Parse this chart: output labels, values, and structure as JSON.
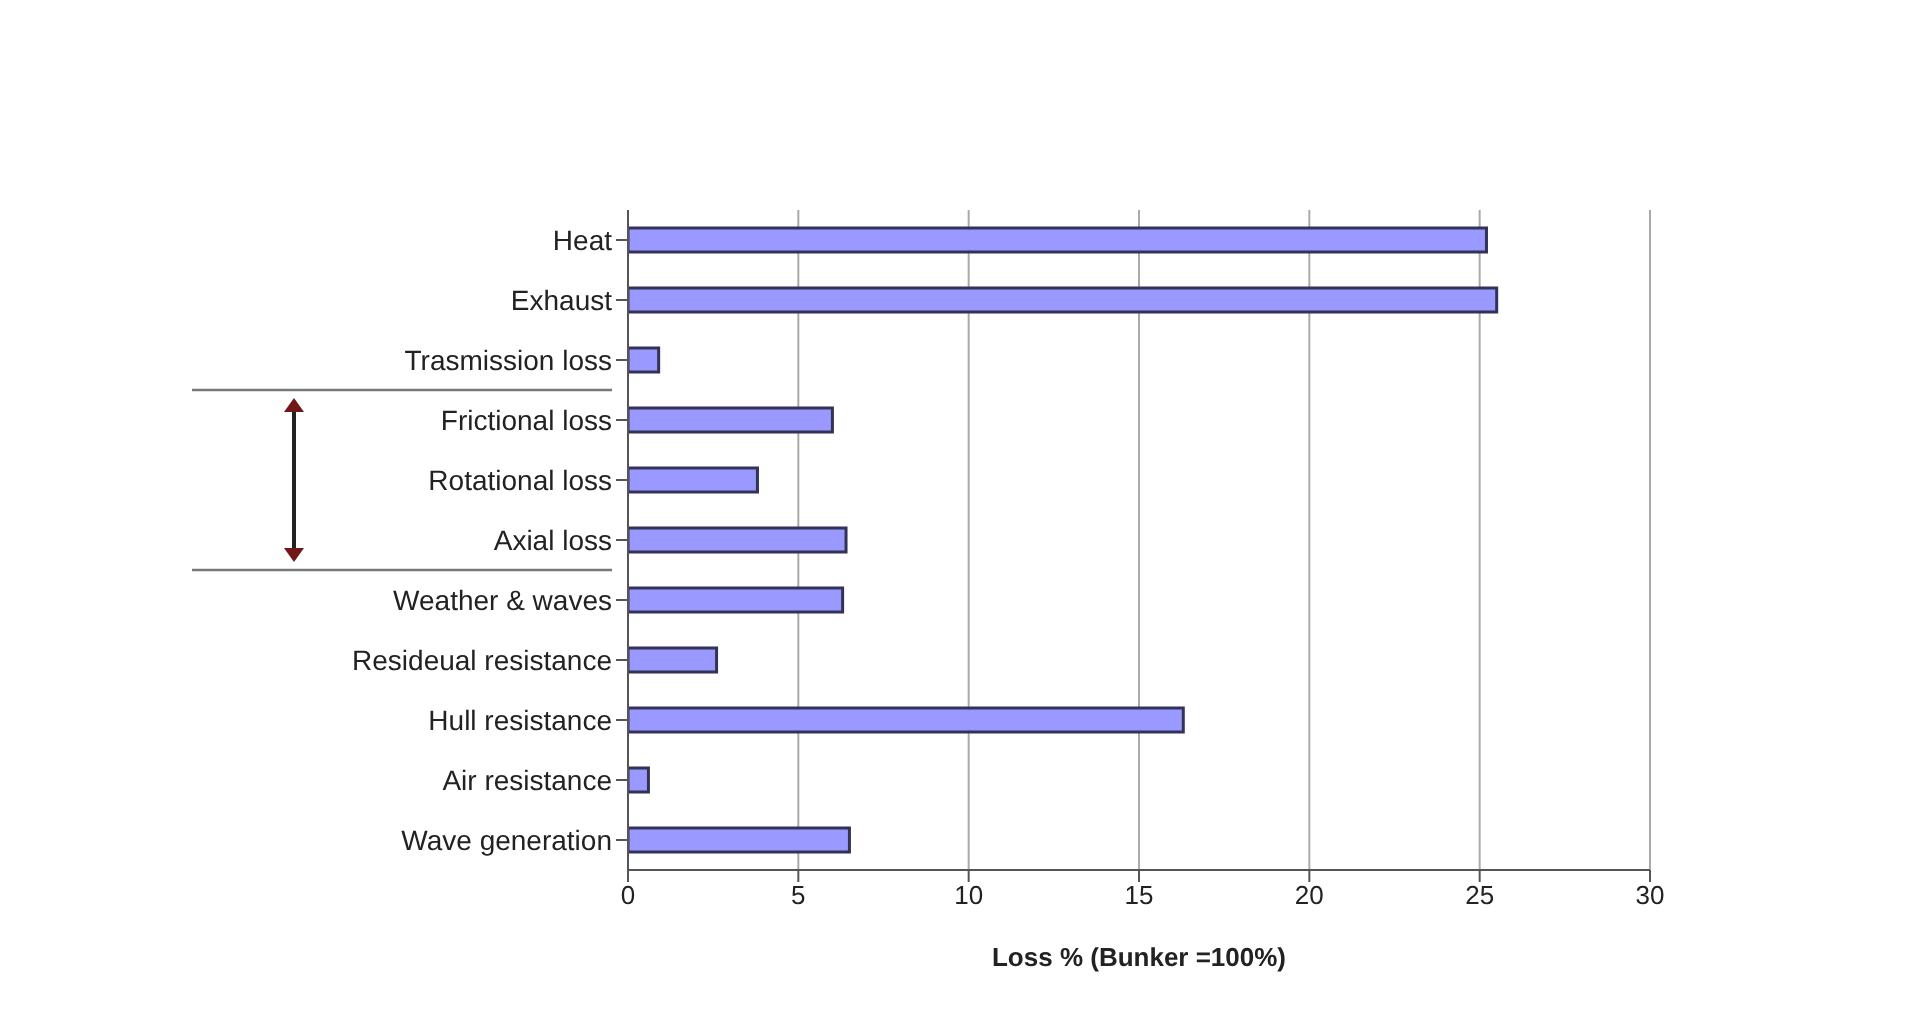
{
  "chart_data": {
    "type": "bar",
    "orientation": "horizontal",
    "xlabel": "Loss %  (Bunker =100%)",
    "categories": [
      "Heat",
      "Exhaust",
      "Trasmission loss",
      "Frictional loss",
      "Rotational loss",
      "Axial loss",
      "Weather & waves",
      "Resideual resistance",
      "Hull resistance",
      "Air resistance",
      "Wave generation"
    ],
    "values": [
      25.2,
      25.5,
      0.9,
      6.0,
      3.8,
      6.4,
      6.3,
      2.6,
      16.3,
      0.6,
      6.5
    ],
    "color": "#9999ff",
    "xlim": [
      0,
      30
    ],
    "xticks": [
      0,
      5,
      10,
      15,
      20,
      25,
      30
    ],
    "grid": "x"
  }
}
